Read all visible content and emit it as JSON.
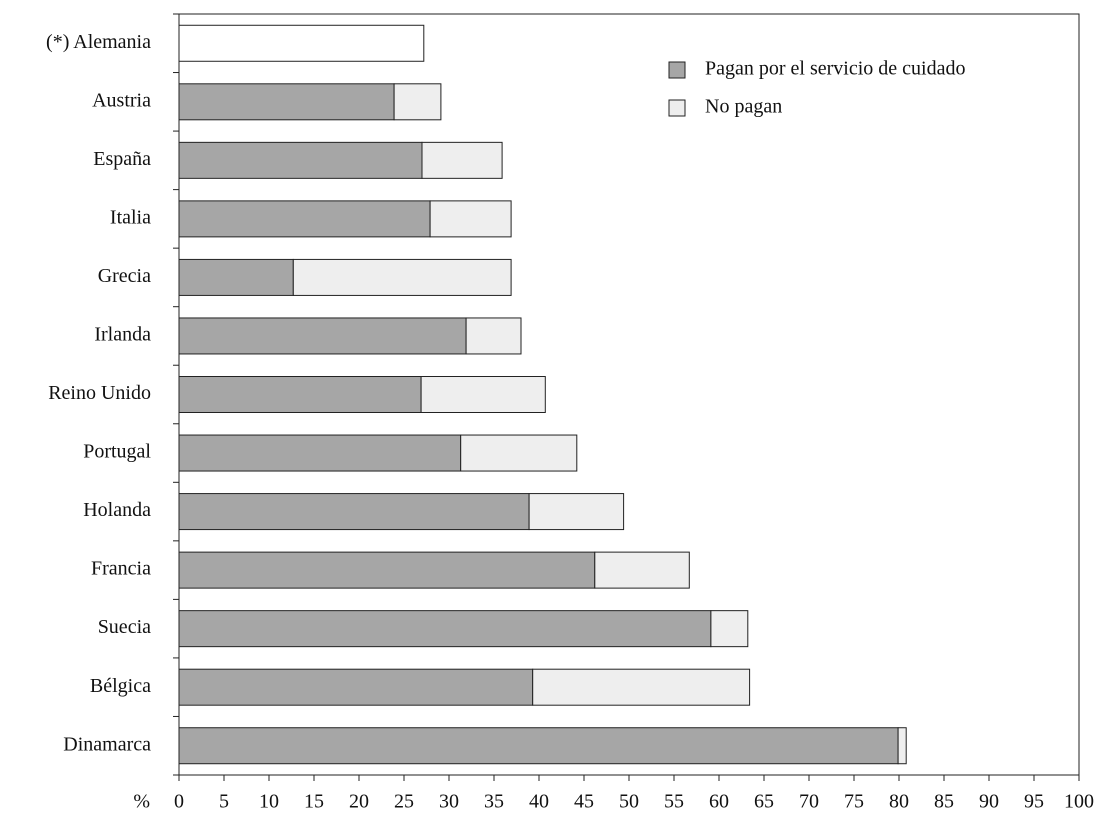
{
  "chart_data": {
    "type": "stacked-barh",
    "categories": [
      "(*) Alemania",
      "Austria",
      "España",
      "Italia",
      "Grecia",
      "Irlanda",
      "Reino Unido",
      "Portugal",
      "Holanda",
      "Francia",
      "Suecia",
      "Bélgica",
      "Dinamarca"
    ],
    "series": [
      {
        "name": "Pagan por el servicio de cuidado",
        "color": "#a6a6a6",
        "values": [
          null,
          23.9,
          27.0,
          27.9,
          12.7,
          31.9,
          26.9,
          31.3,
          38.9,
          46.2,
          59.1,
          39.3,
          79.9
        ]
      },
      {
        "name": "No pagan",
        "color": "#eeeeee",
        "colors": [
          "#ffffff",
          "#eeeeee",
          "#eeeeee",
          "#eeeeee",
          "#eeeeee",
          "#eeeeee",
          "#eeeeee",
          "#eeeeee",
          "#eeeeee",
          "#eeeeee",
          "#eeeeee",
          "#eeeeee",
          "#eeeeee"
        ],
        "values": [
          27.2,
          5.2,
          8.9,
          9.0,
          24.2,
          6.1,
          13.8,
          12.9,
          10.5,
          10.5,
          4.1,
          24.1,
          0.9
        ]
      }
    ],
    "x_label": "%",
    "xlim": [
      0,
      100
    ],
    "xticks": [
      0,
      5,
      10,
      15,
      20,
      25,
      30,
      35,
      40,
      45,
      50,
      55,
      60,
      65,
      70,
      75,
      80,
      85,
      90,
      95,
      100
    ],
    "grid": false,
    "legend": "upper right"
  }
}
